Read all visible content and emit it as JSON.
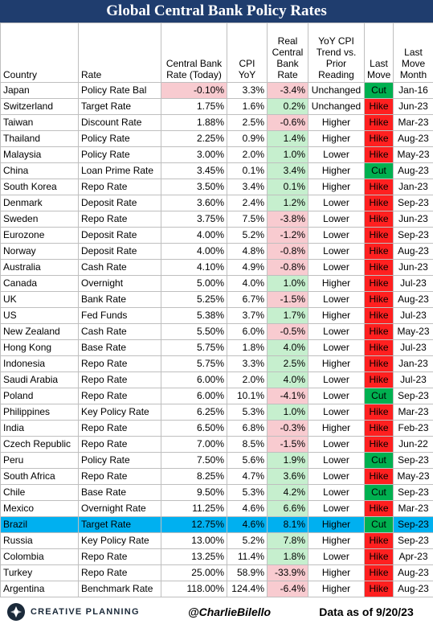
{
  "header": {
    "title": "Global Central Bank Policy Rates"
  },
  "table": {
    "columns": [
      "Country",
      "Rate",
      "Central Bank\nRate (Today)",
      "CPI\nYoY",
      "Real\nCentral\nBank\nRate",
      "YoY CPI\nTrend vs.\nPrior\nReading",
      "Last\nMove",
      "Last\nMove\nMonth"
    ],
    "rows": [
      [
        "Japan",
        "Policy Rate Bal",
        "-0.10%",
        "3.3%",
        "-3.4%",
        "Unchanged",
        "Cut",
        "Jan-16"
      ],
      [
        "Switzerland",
        "Target Rate",
        "1.75%",
        "1.6%",
        "0.2%",
        "Unchanged",
        "Hike",
        "Jun-23"
      ],
      [
        "Taiwan",
        "Discount Rate",
        "1.88%",
        "2.5%",
        "-0.6%",
        "Higher",
        "Hike",
        "Mar-23"
      ],
      [
        "Thailand",
        "Policy Rate",
        "2.25%",
        "0.9%",
        "1.4%",
        "Higher",
        "Hike",
        "Aug-23"
      ],
      [
        "Malaysia",
        "Policy Rate",
        "3.00%",
        "2.0%",
        "1.0%",
        "Lower",
        "Hike",
        "May-23"
      ],
      [
        "China",
        "Loan Prime Rate",
        "3.45%",
        "0.1%",
        "3.4%",
        "Higher",
        "Cut",
        "Aug-23"
      ],
      [
        "South Korea",
        "Repo Rate",
        "3.50%",
        "3.4%",
        "0.1%",
        "Higher",
        "Hike",
        "Jan-23"
      ],
      [
        "Denmark",
        "Deposit Rate",
        "3.60%",
        "2.4%",
        "1.2%",
        "Lower",
        "Hike",
        "Sep-23"
      ],
      [
        "Sweden",
        "Repo Rate",
        "3.75%",
        "7.5%",
        "-3.8%",
        "Lower",
        "Hike",
        "Jun-23"
      ],
      [
        "Eurozone",
        "Deposit Rate",
        "4.00%",
        "5.2%",
        "-1.2%",
        "Lower",
        "Hike",
        "Sep-23"
      ],
      [
        "Norway",
        "Deposit Rate",
        "4.00%",
        "4.8%",
        "-0.8%",
        "Lower",
        "Hike",
        "Aug-23"
      ],
      [
        "Australia",
        "Cash Rate",
        "4.10%",
        "4.9%",
        "-0.8%",
        "Lower",
        "Hike",
        "Jun-23"
      ],
      [
        "Canada",
        "Overnight",
        "5.00%",
        "4.0%",
        "1.0%",
        "Higher",
        "Hike",
        "Jul-23"
      ],
      [
        "UK",
        "Bank Rate",
        "5.25%",
        "6.7%",
        "-1.5%",
        "Lower",
        "Hike",
        "Aug-23"
      ],
      [
        "US",
        "Fed Funds",
        "5.38%",
        "3.7%",
        "1.7%",
        "Higher",
        "Hike",
        "Jul-23"
      ],
      [
        "New Zealand",
        "Cash Rate",
        "5.50%",
        "6.0%",
        "-0.5%",
        "Lower",
        "Hike",
        "May-23"
      ],
      [
        "Hong Kong",
        "Base Rate",
        "5.75%",
        "1.8%",
        "4.0%",
        "Lower",
        "Hike",
        "Jul-23"
      ],
      [
        "Indonesia",
        "Repo Rate",
        "5.75%",
        "3.3%",
        "2.5%",
        "Higher",
        "Hike",
        "Jan-23"
      ],
      [
        "Saudi Arabia",
        "Repo Rate",
        "6.00%",
        "2.0%",
        "4.0%",
        "Lower",
        "Hike",
        "Jul-23"
      ],
      [
        "Poland",
        "Repo Rate",
        "6.00%",
        "10.1%",
        "-4.1%",
        "Lower",
        "Cut",
        "Sep-23"
      ],
      [
        "Philippines",
        "Key Policy Rate",
        "6.25%",
        "5.3%",
        "1.0%",
        "Lower",
        "Hike",
        "Mar-23"
      ],
      [
        "India",
        "Repo Rate",
        "6.50%",
        "6.8%",
        "-0.3%",
        "Higher",
        "Hike",
        "Feb-23"
      ],
      [
        "Czech Republic",
        "Repo Rate",
        "7.00%",
        "8.5%",
        "-1.5%",
        "Lower",
        "Hike",
        "Jun-22"
      ],
      [
        "Peru",
        "Policy Rate",
        "7.50%",
        "5.6%",
        "1.9%",
        "Lower",
        "Cut",
        "Sep-23"
      ],
      [
        "South Africa",
        "Repo Rate",
        "8.25%",
        "4.7%",
        "3.6%",
        "Lower",
        "Hike",
        "May-23"
      ],
      [
        "Chile",
        "Base Rate",
        "9.50%",
        "5.3%",
        "4.2%",
        "Lower",
        "Cut",
        "Sep-23"
      ],
      [
        "Mexico",
        "Overnight Rate",
        "11.25%",
        "4.6%",
        "6.6%",
        "Lower",
        "Hike",
        "Mar-23"
      ],
      [
        "Brazil",
        "Target Rate",
        "12.75%",
        "4.6%",
        "8.1%",
        "Higher",
        "Cut",
        "Sep-23"
      ],
      [
        "Russia",
        "Key Policy Rate",
        "13.00%",
        "5.2%",
        "7.8%",
        "Higher",
        "Hike",
        "Sep-23"
      ],
      [
        "Colombia",
        "Repo Rate",
        "13.25%",
        "11.4%",
        "1.8%",
        "Lower",
        "Hike",
        "Apr-23"
      ],
      [
        "Turkey",
        "Repo Rate",
        "25.00%",
        "58.9%",
        "-33.9%",
        "Higher",
        "Hike",
        "Aug-23"
      ],
      [
        "Argentina",
        "Benchmark Rate",
        "118.00%",
        "124.4%",
        "-6.4%",
        "Higher",
        "Hike",
        "Aug-23"
      ]
    ],
    "highlight_row": 27,
    "highlight_color": "#00b0f0",
    "negative_color": "#f8cbd0",
    "positive_color": "#c6efce",
    "move_colors": {
      "Cut": "#00b050",
      "Hike": "#ff2020"
    }
  },
  "footer": {
    "logo": "CREATIVE PLANNING",
    "handle": "@CharlieBilello",
    "as_of": "Data as of 9/20/23"
  }
}
